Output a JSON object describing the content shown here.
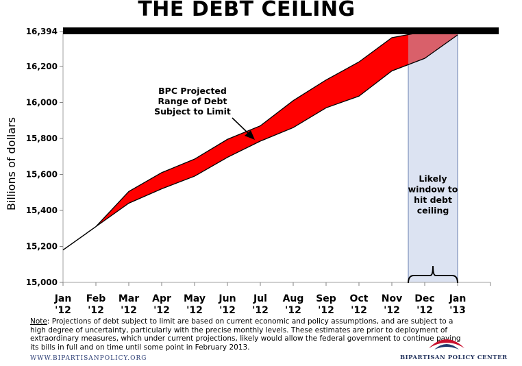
{
  "chart_data": {
    "type": "area",
    "title": "THE DEBT CEILING",
    "ylabel": "Billions of dollars",
    "xlabel": "",
    "ylim": [
      15000,
      16394
    ],
    "yticks": [
      "15,000",
      "15,200",
      "15,400",
      "15,600",
      "15,800",
      "16,000",
      "16,200",
      "16,394"
    ],
    "ytick_values": [
      15000,
      15200,
      15400,
      15600,
      15800,
      16000,
      16200,
      16394
    ],
    "categories": [
      [
        "Jan",
        "'12"
      ],
      [
        "Feb",
        "'12"
      ],
      [
        "Mar",
        "'12"
      ],
      [
        "Apr",
        "'12"
      ],
      [
        "May",
        "'12"
      ],
      [
        "Jun",
        "'12"
      ],
      [
        "Jul",
        "'12"
      ],
      [
        "Aug",
        "'12"
      ],
      [
        "Sep",
        "'12"
      ],
      [
        "Oct",
        "'12"
      ],
      [
        "Nov",
        "'12"
      ],
      [
        "Dec",
        "'12"
      ],
      [
        "Jan",
        "'13"
      ]
    ],
    "range_upper": [
      15180,
      15310,
      15505,
      15610,
      15685,
      15795,
      15870,
      16010,
      16125,
      16225,
      16360,
      16394,
      16394
    ],
    "range_lower": [
      15180,
      15310,
      15440,
      15520,
      15590,
      15695,
      15785,
      15860,
      15970,
      16035,
      16175,
      16245,
      16375
    ],
    "ceiling": 16394,
    "annotation": [
      "BPC Projected",
      "Range of Debt",
      "Subject to Limit"
    ],
    "window_label": [
      "Likely",
      "window to",
      "hit debt",
      "ceiling"
    ],
    "colors": {
      "range_fill": "#ff0000",
      "range_fill_over_window": "#d9606a",
      "window_fill": "#dce3f2",
      "window_border": "#6a7fb0",
      "ceiling_bar": "#000000"
    }
  },
  "note": {
    "label": "Note",
    "text": ": Projections of debt subject to limit are based on current economic and policy assumptions, and are subject to a high degree of uncertainty, particularly with the precise monthly levels. These estimates are prior to deployment of extraordinary measures, which under current projections, likely would allow the federal government to continue paying its bills in full and on time until some point in February 2013."
  },
  "footer": {
    "url": "WWW.BIPARTISANPOLICY.ORG",
    "org": "BIPARTISAN POLICY CENTER"
  },
  "logo": {
    "colors": [
      "#c8102e",
      "#1f3a6e"
    ]
  }
}
